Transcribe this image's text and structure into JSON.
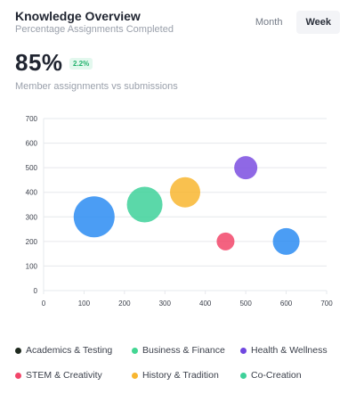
{
  "header": {
    "title": "Knowledge Overview",
    "subtitle": "Percentage Assignments Completed",
    "period_options": [
      "Month",
      "Week"
    ],
    "selected_period": "Week"
  },
  "summary": {
    "value": "85%",
    "delta": "2.2%",
    "caption": "Member assignments vs submissions"
  },
  "legend": [
    {
      "label": "Academics & Testing",
      "color": "#1f2a1f"
    },
    {
      "label": "Business & Finance",
      "color": "#43d693"
    },
    {
      "label": "Health & Wellness",
      "color": "#7047e0"
    },
    {
      "label": "STEM & Creativity",
      "color": "#f2466a"
    },
    {
      "label": "History & Tradition",
      "color": "#f8b630"
    },
    {
      "label": "Co-Creation",
      "color": "#3ed19a"
    }
  ],
  "chart_data": {
    "type": "scatter",
    "bubble": true,
    "xlim": [
      0,
      700
    ],
    "ylim": [
      0,
      700
    ],
    "xticks": [
      0,
      100,
      200,
      300,
      400,
      500,
      600,
      700
    ],
    "yticks": [
      0,
      100,
      200,
      300,
      400,
      500,
      600,
      700
    ],
    "grid": "horizontal",
    "points": [
      {
        "x": 125,
        "y": 300,
        "size": 23,
        "color": "#2b8cf2"
      },
      {
        "x": 250,
        "y": 350,
        "size": 20,
        "color": "#3ed19a"
      },
      {
        "x": 350,
        "y": 400,
        "size": 17,
        "color": "#f8b630"
      },
      {
        "x": 450,
        "y": 200,
        "size": 10,
        "color": "#f2466a"
      },
      {
        "x": 500,
        "y": 500,
        "size": 13,
        "color": "#7b4ee0"
      },
      {
        "x": 600,
        "y": 200,
        "size": 15,
        "color": "#2b8cf2"
      }
    ]
  }
}
